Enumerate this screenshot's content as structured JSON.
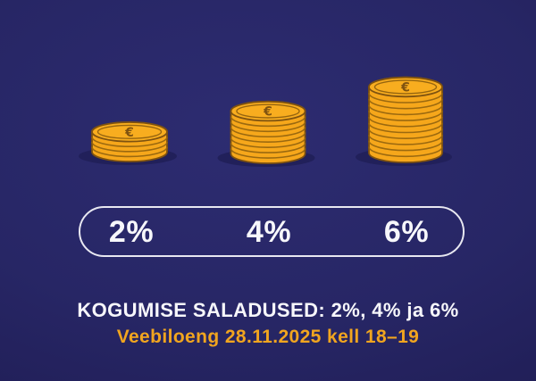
{
  "chart_data": {
    "type": "bar",
    "subtype": "pictograph-coin-stacks",
    "categories": [
      "2%",
      "4%",
      "6%"
    ],
    "values": [
      4,
      8,
      11
    ],
    "value_unit": "coins",
    "title": "KOGUMISE SALADUSED: 2%, 4% ja 6%",
    "subtitle": "Veebiloeng 28.11.2025 kell 18–19",
    "legend_position": "none",
    "grid": false
  },
  "pill": {
    "labels": [
      "2%",
      "4%",
      "6%"
    ]
  },
  "footer": {
    "title": "KOGUMISE SALADUSED: 2%, 4% ja 6%",
    "subtitle": "Veebiloeng 28.11.2025 kell 18–19"
  },
  "icons": {
    "coin_symbol": "€"
  },
  "colors": {
    "background": "#272665",
    "background_edge": "#1B194B",
    "coin_gold": "#F6A71B",
    "coin_gold_top": "#F8AD1F",
    "coin_outline": "#7E5210",
    "coin_ridge": "#96650F",
    "stack_shadow": "#21205A",
    "pill_border": "#E8E8F1",
    "text_white": "#F7F7FB",
    "text_orange": "#F1A51F"
  }
}
